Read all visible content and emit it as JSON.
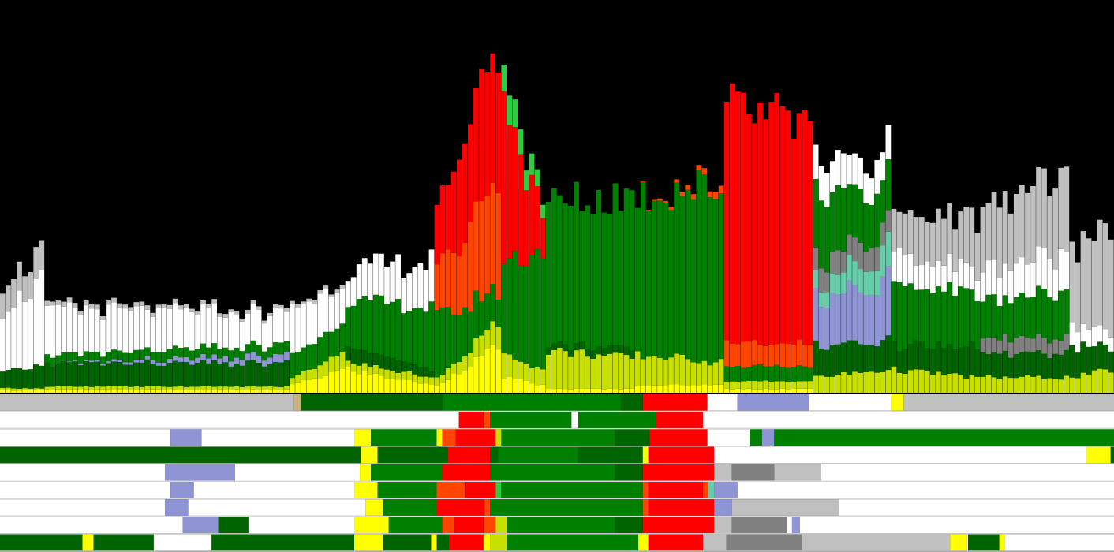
{
  "palette": {
    "background": "#000000",
    "white": "#ffffff",
    "light_gray": "#c0c0c0",
    "dark_gray": "#808080",
    "periwinkle": "#8f94d4",
    "green_dark": "#006400",
    "green": "#008000",
    "green_light": "#2ecc40",
    "lime": "#c8e000",
    "yellow": "#ffff00",
    "red": "#ff0000",
    "orange_red": "#ff4500",
    "aquamarine": "#66cdaa",
    "tan": "#c8b47a",
    "separator": "#d8d8d8"
  },
  "chart_data": {
    "type": "area",
    "stacked": true,
    "x_count": 200,
    "y_max": 460,
    "grid": false,
    "legend": "none",
    "series_order": [
      "yellow",
      "lime",
      "green_dark",
      "periwinkle",
      "aquamarine",
      "dark_gray",
      "green",
      "white",
      "light_gray",
      "orange_red",
      "red"
    ],
    "segments": [
      {
        "start": 0,
        "end": 8,
        "layers": {
          "yellow": [
            3,
            4
          ],
          "lime": [
            3,
            2
          ],
          "green_dark": [
            20,
            30
          ],
          "white": [
            80,
            110
          ],
          "light_gray": [
            30,
            40
          ]
        }
      },
      {
        "start": 8,
        "end": 52,
        "layers": {
          "yellow": [
            4,
            4
          ],
          "lime": [
            4,
            4
          ],
          "green_dark": [
            30,
            30
          ],
          "periwinkle": [
            0,
            10
          ],
          "green": [
            10,
            14
          ],
          "white": [
            60,
            40
          ],
          "light_gray": [
            6,
            4
          ]
        }
      },
      {
        "start": 52,
        "end": 62,
        "layers": {
          "yellow": [
            10,
            30
          ],
          "lime": [
            10,
            20
          ],
          "green": [
            30,
            40
          ],
          "white": [
            60,
            50
          ],
          "light_gray": [
            4,
            4
          ]
        }
      },
      {
        "start": 62,
        "end": 78,
        "layers": {
          "yellow": [
            30,
            10
          ],
          "lime": [
            10,
            10
          ],
          "green_dark": [
            20,
            10
          ],
          "white": [
            40,
            60
          ],
          "green": [
            60,
            80
          ]
        }
      },
      {
        "start": 78,
        "end": 90,
        "layers": {
          "yellow": [
            10,
            60
          ],
          "lime": [
            10,
            30
          ],
          "green": [
            80,
            40
          ],
          "orange_red": [
            60,
            140
          ],
          "red": [
            80,
            180
          ]
        }
      },
      {
        "start": 90,
        "end": 98,
        "layers": {
          "yellow": [
            20,
            10
          ],
          "lime": [
            30,
            20
          ],
          "green_light": [
            40,
            20
          ],
          "green": [
            120,
            160
          ],
          "red": [
            200,
            50
          ]
        }
      },
      {
        "start": 98,
        "end": 114,
        "layers": {
          "lime": [
            50,
            40
          ],
          "green_dark": [
            10,
            10
          ],
          "green": [
            180,
            200
          ],
          "yellow": [
            5,
            5
          ]
        }
      },
      {
        "start": 114,
        "end": 130,
        "layers": {
          "yellow": [
            10,
            10
          ],
          "lime": [
            40,
            30
          ],
          "green": [
            210,
            230
          ],
          "orange_red": [
            0,
            10
          ]
        }
      },
      {
        "start": 130,
        "end": 146,
        "layers": {
          "yellow": [
            5,
            5
          ],
          "lime": [
            10,
            10
          ],
          "green": [
            20,
            20
          ],
          "orange_red": [
            30,
            30
          ],
          "red": [
            300,
            280
          ]
        }
      },
      {
        "start": 146,
        "end": 160,
        "layers": {
          "lime": [
            20,
            30
          ],
          "aquamarine": [
            20,
            40
          ],
          "dark_gray": [
            30,
            30
          ],
          "periwinkle": [
            60,
            80
          ],
          "green_dark": [
            40,
            40
          ],
          "white": [
            40,
            40
          ],
          "green": [
            80,
            60
          ]
        }
      },
      {
        "start": 160,
        "end": 176,
        "layers": {
          "lime": [
            30,
            20
          ],
          "green_dark": [
            30,
            40
          ],
          "white": [
            40,
            30
          ],
          "light_gray": [
            50,
            70
          ],
          "green": [
            80,
            70
          ]
        }
      },
      {
        "start": 176,
        "end": 192,
        "layers": {
          "lime": [
            20,
            20
          ],
          "dark_gray": [
            20,
            20
          ],
          "green_dark": [
            30,
            30
          ],
          "white": [
            40,
            50
          ],
          "green": [
            50,
            60
          ],
          "light_gray": [
            80,
            100
          ]
        }
      },
      {
        "start": 192,
        "end": 200,
        "layers": {
          "lime": [
            20,
            30
          ],
          "green_dark": [
            40,
            30
          ],
          "white": [
            30,
            20
          ],
          "light_gray": [
            100,
            140
          ]
        }
      }
    ],
    "rows": [
      [
        [
          "light_gray",
          0,
          0.264
        ],
        [
          "tan",
          0.264,
          0.27
        ],
        [
          "green_dark",
          0.27,
          0.397
        ],
        [
          "green",
          0.397,
          0.557
        ],
        [
          "green_dark",
          0.557,
          0.577
        ],
        [
          "red",
          0.577,
          0.635
        ],
        [
          "white",
          0.635,
          0.662
        ],
        [
          "periwinkle",
          0.662,
          0.726
        ],
        [
          "white",
          0.726,
          0.8
        ],
        [
          "yellow",
          0.8,
          0.811
        ],
        [
          "light_gray",
          0.811,
          1
        ]
      ],
      [
        [
          "white",
          0,
          0.412
        ],
        [
          "red",
          0.412,
          0.434
        ],
        [
          "orange_red",
          0.434,
          0.44
        ],
        [
          "green",
          0.44,
          0.513
        ],
        [
          "white",
          0.513,
          0.519
        ],
        [
          "green",
          0.519,
          0.589
        ],
        [
          "red",
          0.589,
          0.631
        ],
        [
          "white",
          0.631,
          1
        ]
      ],
      [
        [
          "white",
          0,
          0.153
        ],
        [
          "periwinkle",
          0.153,
          0.181
        ],
        [
          "white",
          0.181,
          0.318
        ],
        [
          "yellow",
          0.318,
          0.333
        ],
        [
          "green",
          0.333,
          0.392
        ],
        [
          "yellow",
          0.392,
          0.397
        ],
        [
          "orange_red",
          0.397,
          0.409
        ],
        [
          "red",
          0.409,
          0.445
        ],
        [
          "lime",
          0.445,
          0.45
        ],
        [
          "green",
          0.45,
          0.552
        ],
        [
          "green_dark",
          0.552,
          0.583
        ],
        [
          "red",
          0.583,
          0.635
        ],
        [
          "white",
          0.635,
          0.673
        ],
        [
          "green",
          0.673,
          0.684
        ],
        [
          "white",
          0.684,
          0.684
        ],
        [
          "periwinkle",
          0.684,
          0.695
        ],
        [
          "green",
          0.695,
          1
        ]
      ],
      [
        [
          "green_dark",
          0,
          0.324
        ],
        [
          "yellow",
          0.324,
          0.339
        ],
        [
          "green_dark",
          0.339,
          0.402
        ],
        [
          "red",
          0.402,
          0.44
        ],
        [
          "green_dark",
          0.44,
          0.447
        ],
        [
          "green",
          0.447,
          0.519
        ],
        [
          "green_dark",
          0.519,
          0.577
        ],
        [
          "yellow",
          0.577,
          0.582
        ],
        [
          "red",
          0.582,
          0.641
        ],
        [
          "white",
          0.641,
          0.975
        ],
        [
          "yellow",
          0.975,
          0.997
        ],
        [
          "green_dark",
          0.997,
          1
        ]
      ],
      [
        [
          "white",
          0,
          0.148
        ],
        [
          "periwinkle",
          0.148,
          0.211
        ],
        [
          "white",
          0.211,
          0.323
        ],
        [
          "yellow",
          0.323,
          0.333
        ],
        [
          "green",
          0.333,
          0.397
        ],
        [
          "red",
          0.397,
          0.44
        ],
        [
          "green",
          0.44,
          0.552
        ],
        [
          "green_dark",
          0.552,
          0.577
        ],
        [
          "red",
          0.577,
          0.641
        ],
        [
          "light_gray",
          0.641,
          0.657
        ],
        [
          "dark_gray",
          0.657,
          0.695
        ],
        [
          "light_gray",
          0.695,
          0.737
        ],
        [
          "white",
          0.737,
          1
        ]
      ],
      [
        [
          "white",
          0,
          0.153
        ],
        [
          "periwinkle",
          0.153,
          0.174
        ],
        [
          "white",
          0.174,
          0.318
        ],
        [
          "yellow",
          0.318,
          0.339
        ],
        [
          "green",
          0.339,
          0.392
        ],
        [
          "orange_red",
          0.392,
          0.418
        ],
        [
          "red",
          0.418,
          0.445
        ],
        [
          "green_light",
          0.445,
          0.45
        ],
        [
          "green",
          0.45,
          0.577
        ],
        [
          "orange_red",
          0.577,
          0.582
        ],
        [
          "red",
          0.582,
          0.631
        ],
        [
          "orange_red",
          0.631,
          0.636
        ],
        [
          "aquamarine",
          0.636,
          0.641
        ],
        [
          "periwinkle",
          0.641,
          0.662
        ],
        [
          "white",
          0.662,
          1
        ]
      ],
      [
        [
          "white",
          0,
          0.148
        ],
        [
          "periwinkle",
          0.148,
          0.169
        ],
        [
          "white",
          0.169,
          0.328
        ],
        [
          "yellow",
          0.328,
          0.344
        ],
        [
          "green",
          0.344,
          0.392
        ],
        [
          "red",
          0.392,
          0.435
        ],
        [
          "orange_red",
          0.435,
          0.44
        ],
        [
          "green",
          0.44,
          0.577
        ],
        [
          "orange_red",
          0.577,
          0.582
        ],
        [
          "red",
          0.582,
          0.641
        ],
        [
          "periwinkle",
          0.641,
          0.657
        ],
        [
          "light_gray",
          0.657,
          0.753
        ],
        [
          "white",
          0.753,
          1
        ]
      ],
      [
        [
          "white",
          0,
          0.164
        ],
        [
          "periwinkle",
          0.164,
          0.196
        ],
        [
          "green_dark",
          0.196,
          0.223
        ],
        [
          "white",
          0.223,
          0.318
        ],
        [
          "yellow",
          0.318,
          0.349
        ],
        [
          "green",
          0.349,
          0.397
        ],
        [
          "orange_red",
          0.397,
          0.408
        ],
        [
          "red",
          0.408,
          0.434
        ],
        [
          "orange_red",
          0.434,
          0.445
        ],
        [
          "lime",
          0.445,
          0.455
        ],
        [
          "green",
          0.455,
          0.552
        ],
        [
          "green_dark",
          0.552,
          0.577
        ],
        [
          "red",
          0.577,
          0.641
        ],
        [
          "light_gray",
          0.641,
          0.657
        ],
        [
          "dark_gray",
          0.657,
          0.706
        ],
        [
          "white",
          0.706,
          0.711
        ],
        [
          "periwinkle",
          0.711,
          0.718
        ],
        [
          "white",
          0.718,
          1
        ]
      ],
      [
        [
          "green_dark",
          0,
          0.074
        ],
        [
          "yellow",
          0.074,
          0.084
        ],
        [
          "green_dark",
          0.084,
          0.138
        ],
        [
          "white",
          0.138,
          0.19
        ],
        [
          "green_dark",
          0.19,
          0.318
        ],
        [
          "yellow",
          0.318,
          0.344
        ],
        [
          "green_dark",
          0.344,
          0.387
        ],
        [
          "yellow",
          0.387,
          0.392
        ],
        [
          "green_dark",
          0.392,
          0.403
        ],
        [
          "red",
          0.403,
          0.434
        ],
        [
          "yellow",
          0.434,
          0.44
        ],
        [
          "lime",
          0.44,
          0.455
        ],
        [
          "green",
          0.455,
          0.573
        ],
        [
          "yellow",
          0.573,
          0.582
        ],
        [
          "red",
          0.582,
          0.631
        ],
        [
          "light_gray",
          0.631,
          0.652
        ],
        [
          "dark_gray",
          0.652,
          0.72
        ],
        [
          "light_gray",
          0.72,
          0.853
        ],
        [
          "yellow",
          0.853,
          0.868
        ],
        [
          "white",
          0.868,
          0.869
        ],
        [
          "green_dark",
          0.869,
          0.897
        ],
        [
          "yellow",
          0.897,
          0.902
        ],
        [
          "white",
          0.902,
          1
        ]
      ]
    ]
  }
}
